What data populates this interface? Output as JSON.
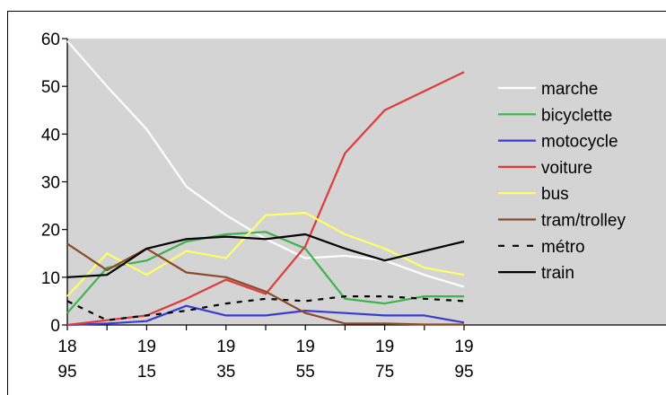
{
  "chart_data": {
    "type": "line",
    "title": "",
    "xlabel": "",
    "ylabel": "",
    "x": [
      1895,
      1905,
      1915,
      1925,
      1935,
      1945,
      1955,
      1965,
      1975,
      1985,
      1995
    ],
    "x_tick_labels": [
      {
        "x": 1895,
        "line1": "18",
        "line2": "95"
      },
      {
        "x": 1915,
        "line1": "19",
        "line2": "15"
      },
      {
        "x": 1935,
        "line1": "19",
        "line2": "35"
      },
      {
        "x": 1955,
        "line1": "19",
        "line2": "55"
      },
      {
        "x": 1975,
        "line1": "19",
        "line2": "75"
      },
      {
        "x": 1995,
        "line1": "19",
        "line2": "95"
      }
    ],
    "ylim": [
      0,
      60
    ],
    "y_ticks": [
      0,
      10,
      20,
      30,
      40,
      50,
      60
    ],
    "xlim": [
      1895,
      1995
    ],
    "grid": false,
    "plot_background": "#d4d4d4",
    "legend_position": "right",
    "series": [
      {
        "name": "marche",
        "color": "#ffffff",
        "dashed": false,
        "values": [
          59.5,
          50,
          41,
          29,
          23,
          18,
          14,
          14.5,
          13.5,
          10.5,
          8
        ]
      },
      {
        "name": "bicyclette",
        "color": "#3cb44b",
        "dashed": false,
        "values": [
          2.5,
          12,
          13.5,
          17.5,
          19,
          19.5,
          16,
          5.5,
          4.5,
          6,
          6
        ]
      },
      {
        "name": "motocycle",
        "color": "#3b3bd4",
        "dashed": false,
        "values": [
          0,
          0.3,
          0.8,
          4,
          2,
          2,
          3,
          2.5,
          2,
          2,
          0.5
        ]
      },
      {
        "name": "voiture",
        "color": "#e03a3a",
        "dashed": false,
        "values": [
          0,
          1,
          2,
          5.5,
          9.5,
          6.5,
          16.5,
          36,
          45,
          49,
          53
        ]
      },
      {
        "name": "bus",
        "color": "#ffff66",
        "dashed": false,
        "values": [
          6,
          15,
          10.5,
          15.5,
          14,
          23,
          23.5,
          19,
          16,
          12,
          10.5
        ]
      },
      {
        "name": "tram/trolley",
        "color": "#8b4a2b",
        "dashed": false,
        "values": [
          17,
          11.5,
          16,
          11,
          10,
          7,
          2.5,
          0.3,
          0.3,
          0.1,
          0.1
        ]
      },
      {
        "name": "métro",
        "color": "#000000",
        "dashed": true,
        "values": [
          5,
          1,
          2,
          3,
          4.5,
          5.5,
          5,
          6,
          6,
          5.5,
          5
        ]
      },
      {
        "name": "train",
        "color": "#000000",
        "dashed": false,
        "values": [
          10,
          10.5,
          16,
          18,
          18.5,
          18,
          19,
          16,
          13.5,
          15.5,
          17.5
        ]
      }
    ]
  }
}
